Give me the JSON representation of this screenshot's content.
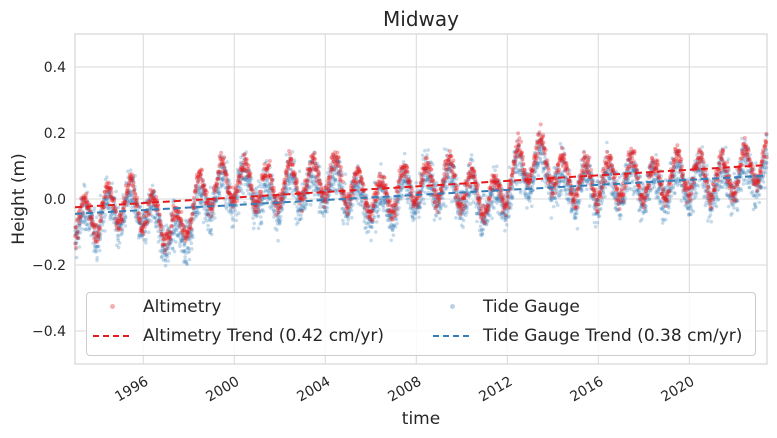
{
  "chart_data": {
    "type": "scatter",
    "title": "Midway",
    "xlabel": "time",
    "ylabel": "Height (m)",
    "xlim": [
      "1993-01-01",
      "2023-06-01"
    ],
    "ylim": [
      -0.5,
      0.5
    ],
    "x_ticks": [
      "1996",
      "2000",
      "2004",
      "2008",
      "2012",
      "2016",
      "2020"
    ],
    "y_ticks": [
      "−0.4",
      "−0.2",
      "0.0",
      "0.2",
      "0.4"
    ],
    "y_tick_values": [
      -0.4,
      -0.2,
      0.0,
      0.2,
      0.4
    ],
    "grid": true,
    "legend_placement": "bottom",
    "series": [
      {
        "name": "Altimetry",
        "kind": "scatter",
        "color": "#e41a1c",
        "monthly_mean_x": [
          "1993",
          "1994",
          "1995",
          "1996",
          "1997",
          "1998",
          "1999",
          "2000",
          "2001",
          "2002",
          "2003",
          "2004",
          "2005",
          "2006",
          "2007",
          "2008",
          "2009",
          "2010",
          "2011",
          "2012",
          "2013",
          "2014",
          "2015",
          "2016",
          "2017",
          "2018",
          "2019",
          "2020",
          "2021",
          "2022",
          "2023"
        ],
        "monthly_mean_y": [
          -0.06,
          -0.02,
          0.0,
          -0.05,
          -0.1,
          0.02,
          0.05,
          0.06,
          0.03,
          0.05,
          0.06,
          0.07,
          0.02,
          0.0,
          0.04,
          0.05,
          0.06,
          0.02,
          0.0,
          0.1,
          0.13,
          0.06,
          0.05,
          0.06,
          0.07,
          0.05,
          0.08,
          0.07,
          0.06,
          0.1,
          0.12
        ]
      },
      {
        "name": "Tide Gauge",
        "kind": "scatter",
        "color": "#377eb8",
        "monthly_mean_x": [
          "1993",
          "1994",
          "1995",
          "1996",
          "1997",
          "1998",
          "1999",
          "2000",
          "2001",
          "2002",
          "2003",
          "2004",
          "2005",
          "2006",
          "2007",
          "2008",
          "2009",
          "2010",
          "2011",
          "2012",
          "2013",
          "2014",
          "2015",
          "2016",
          "2017",
          "2018",
          "2019",
          "2020",
          "2021",
          "2022",
          "2023"
        ],
        "monthly_mean_y": [
          -0.08,
          -0.04,
          -0.02,
          -0.07,
          -0.13,
          -0.02,
          0.03,
          0.04,
          0.0,
          0.02,
          0.04,
          0.04,
          0.0,
          -0.03,
          0.02,
          0.03,
          0.04,
          0.0,
          -0.02,
          0.07,
          0.1,
          0.04,
          0.03,
          0.04,
          0.05,
          0.03,
          0.05,
          0.05,
          0.04,
          0.07,
          0.09
        ]
      },
      {
        "name": "Altimetry Trend (0.42 cm/yr)",
        "kind": "trend",
        "color": "#e41a1c",
        "x": [
          "1993-01-01",
          "2023-06-01"
        ],
        "y": [
          -0.025,
          0.103
        ]
      },
      {
        "name": "Tide Gauge Trend (0.38 cm/yr)",
        "kind": "trend",
        "color": "#377eb8",
        "x": [
          "1993-01-01",
          "2023-06-01"
        ],
        "y": [
          -0.045,
          0.071
        ]
      }
    ]
  }
}
